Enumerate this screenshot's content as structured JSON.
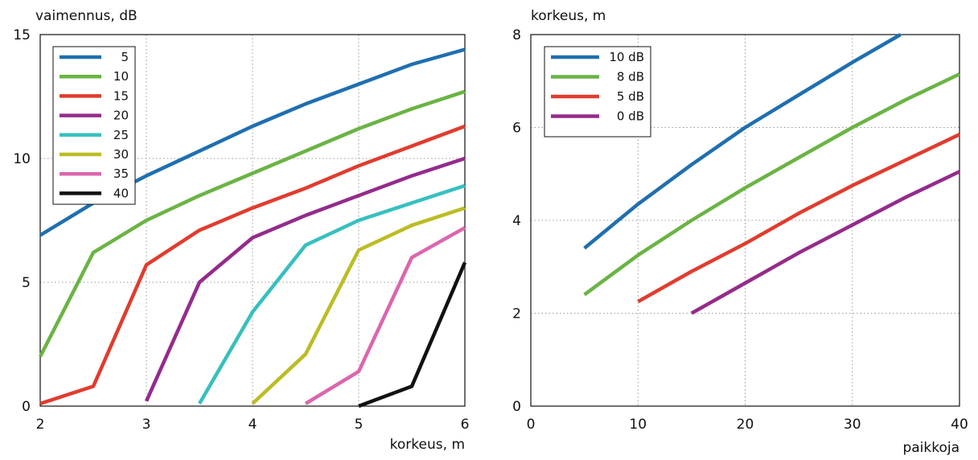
{
  "chart_data": [
    {
      "type": "line",
      "ylabel": "vaimennus, dB",
      "xlabel": "korkeus, m",
      "xlim": [
        2,
        6
      ],
      "ylim": [
        0,
        15
      ],
      "xticks": [
        2,
        3,
        4,
        5,
        6
      ],
      "yticks": [
        0,
        5,
        10,
        15
      ],
      "grid": true,
      "legend_position": "top-left",
      "series": [
        {
          "name": "5",
          "color": "#1f6fb0",
          "points": [
            [
              2,
              6.9
            ],
            [
              2.5,
              8.2
            ],
            [
              3,
              9.3
            ],
            [
              3.5,
              10.3
            ],
            [
              4,
              11.3
            ],
            [
              4.5,
              12.2
            ],
            [
              5,
              13.0
            ],
            [
              5.5,
              13.8
            ],
            [
              6,
              14.4
            ]
          ]
        },
        {
          "name": "10",
          "color": "#6ab444",
          "points": [
            [
              2,
              2.0
            ],
            [
              2.5,
              6.2
            ],
            [
              3,
              7.5
            ],
            [
              3.5,
              8.5
            ],
            [
              4,
              9.4
            ],
            [
              4.5,
              10.3
            ],
            [
              5,
              11.2
            ],
            [
              5.5,
              12.0
            ],
            [
              6,
              12.7
            ]
          ]
        },
        {
          "name": "15",
          "color": "#e03c2e",
          "points": [
            [
              2,
              0.1
            ],
            [
              2.5,
              0.8
            ],
            [
              3,
              5.7
            ],
            [
              3.5,
              7.1
            ],
            [
              4,
              8.0
            ],
            [
              4.5,
              8.8
            ],
            [
              5,
              9.7
            ],
            [
              5.5,
              10.5
            ],
            [
              6,
              11.3
            ]
          ]
        },
        {
          "name": "20",
          "color": "#942b8c",
          "points": [
            [
              3,
              0.2
            ],
            [
              3.5,
              5.0
            ],
            [
              4,
              6.8
            ],
            [
              4.5,
              7.7
            ],
            [
              5,
              8.5
            ],
            [
              5.5,
              9.3
            ],
            [
              6,
              10.0
            ]
          ]
        },
        {
          "name": "25",
          "color": "#38bfbf",
          "points": [
            [
              3.5,
              0.1
            ],
            [
              4,
              3.8
            ],
            [
              4.5,
              6.5
            ],
            [
              5,
              7.5
            ],
            [
              5.5,
              8.2
            ],
            [
              6,
              8.9
            ]
          ]
        },
        {
          "name": "30",
          "color": "#bcbc24",
          "points": [
            [
              4,
              0.1
            ],
            [
              4.5,
              2.1
            ],
            [
              5,
              6.3
            ],
            [
              5.5,
              7.3
            ],
            [
              6,
              8.0
            ]
          ]
        },
        {
          "name": "35",
          "color": "#db66ad",
          "points": [
            [
              4.5,
              0.1
            ],
            [
              5,
              1.4
            ],
            [
              5.5,
              6.0
            ],
            [
              6,
              7.2
            ]
          ]
        },
        {
          "name": "40",
          "color": "#111111",
          "points": [
            [
              5,
              0.0
            ],
            [
              5.5,
              0.8
            ],
            [
              6,
              5.8
            ]
          ]
        }
      ]
    },
    {
      "type": "line",
      "ylabel": "korkeus, m",
      "xlabel": "paikkoja",
      "xlim": [
        0,
        40
      ],
      "ylim": [
        0,
        8
      ],
      "xticks": [
        0,
        10,
        20,
        30,
        40
      ],
      "yticks": [
        0,
        2,
        4,
        6,
        8
      ],
      "grid": true,
      "legend_position": "top-left",
      "series": [
        {
          "name": "10 dB",
          "color": "#1f6fb0",
          "points": [
            [
              5,
              3.4
            ],
            [
              10,
              4.35
            ],
            [
              15,
              5.2
            ],
            [
              20,
              6.0
            ],
            [
              25,
              6.7
            ],
            [
              30,
              7.4
            ],
            [
              34.5,
              8.0
            ]
          ]
        },
        {
          "name": "8 dB",
          "color": "#6ab444",
          "points": [
            [
              5,
              2.4
            ],
            [
              10,
              3.25
            ],
            [
              15,
              4.0
            ],
            [
              20,
              4.7
            ],
            [
              25,
              5.35
            ],
            [
              30,
              6.0
            ],
            [
              35,
              6.6
            ],
            [
              40,
              7.15
            ]
          ]
        },
        {
          "name": "5 dB",
          "color": "#e03c2e",
          "points": [
            [
              10,
              2.25
            ],
            [
              15,
              2.9
            ],
            [
              20,
              3.5
            ],
            [
              25,
              4.15
            ],
            [
              30,
              4.75
            ],
            [
              35,
              5.3
            ],
            [
              40,
              5.85
            ]
          ]
        },
        {
          "name": "0 dB",
          "color": "#942b8c",
          "points": [
            [
              15,
              2.0
            ],
            [
              20,
              2.65
            ],
            [
              25,
              3.3
            ],
            [
              30,
              3.9
            ],
            [
              35,
              4.5
            ],
            [
              40,
              5.05
            ]
          ]
        }
      ]
    }
  ]
}
